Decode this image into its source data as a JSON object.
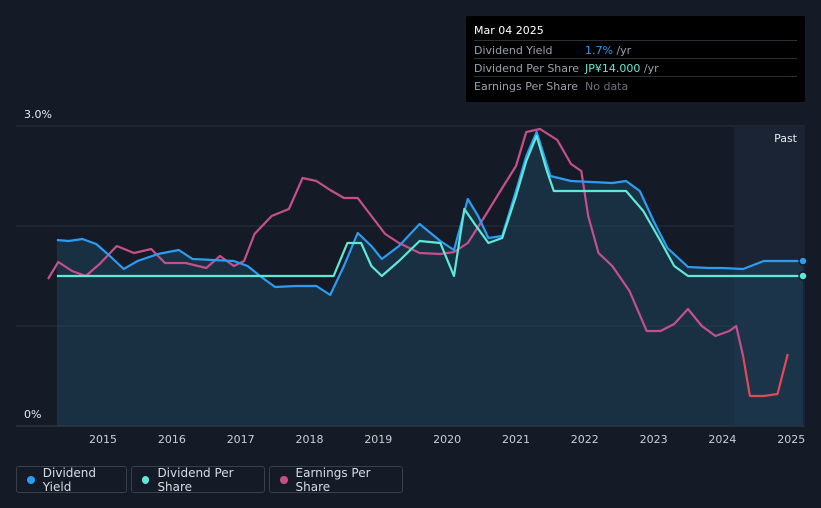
{
  "tooltip": {
    "date": "Mar 04 2025",
    "rows": [
      {
        "label": "Dividend Yield",
        "value": "1.7%",
        "unit": " /yr",
        "color": "#2c9cf0"
      },
      {
        "label": "Dividend Per Share",
        "value": "JP¥14.000",
        "unit": " /yr",
        "color": "#5ee9d6"
      },
      {
        "label": "Earnings Per Share",
        "value": "No data",
        "unit": "",
        "color": "#6b727d"
      }
    ]
  },
  "legend": [
    {
      "label": "Dividend Yield",
      "color": "#2c9cf0"
    },
    {
      "label": "Dividend Per Share",
      "color": "#5ee9d6"
    },
    {
      "label": "Earnings Per Share",
      "color": "#c4508b"
    }
  ],
  "chart_data": {
    "type": "line",
    "y_tick_labels": [
      "3.0%",
      "0%"
    ],
    "ylim": [
      0,
      3.0
    ],
    "xlim": [
      2014.2,
      2025.2
    ],
    "x_tick_labels": [
      "2015",
      "2016",
      "2017",
      "2018",
      "2019",
      "2020",
      "2021",
      "2022",
      "2023",
      "2024",
      "2025"
    ],
    "past_label": "Past",
    "past_start": 2024.17,
    "series": [
      {
        "name": "Dividend Yield",
        "color": "#2c9cf0",
        "points": [
          [
            2014.33,
            1.86
          ],
          [
            2014.5,
            1.85
          ],
          [
            2014.7,
            1.87
          ],
          [
            2014.9,
            1.82
          ],
          [
            2015.1,
            1.7
          ],
          [
            2015.3,
            1.57
          ],
          [
            2015.5,
            1.65
          ],
          [
            2015.8,
            1.72
          ],
          [
            2016.1,
            1.76
          ],
          [
            2016.3,
            1.67
          ],
          [
            2016.6,
            1.66
          ],
          [
            2016.9,
            1.65
          ],
          [
            2017.1,
            1.6
          ],
          [
            2017.3,
            1.49
          ],
          [
            2017.5,
            1.39
          ],
          [
            2017.8,
            1.4
          ],
          [
            2018.1,
            1.4
          ],
          [
            2018.3,
            1.31
          ],
          [
            2018.5,
            1.6
          ],
          [
            2018.7,
            1.93
          ],
          [
            2018.9,
            1.8
          ],
          [
            2019.05,
            1.67
          ],
          [
            2019.3,
            1.8
          ],
          [
            2019.6,
            2.02
          ],
          [
            2019.9,
            1.85
          ],
          [
            2020.1,
            1.76
          ],
          [
            2020.3,
            2.27
          ],
          [
            2020.45,
            2.1
          ],
          [
            2020.6,
            1.88
          ],
          [
            2020.8,
            1.9
          ],
          [
            2021.0,
            2.35
          ],
          [
            2021.15,
            2.7
          ],
          [
            2021.3,
            2.94
          ],
          [
            2021.5,
            2.5
          ],
          [
            2021.8,
            2.45
          ],
          [
            2022.1,
            2.44
          ],
          [
            2022.4,
            2.43
          ],
          [
            2022.6,
            2.45
          ],
          [
            2022.8,
            2.35
          ],
          [
            2023.0,
            2.05
          ],
          [
            2023.2,
            1.78
          ],
          [
            2023.5,
            1.59
          ],
          [
            2023.8,
            1.58
          ],
          [
            2024.0,
            1.58
          ],
          [
            2024.3,
            1.57
          ],
          [
            2024.6,
            1.65
          ],
          [
            2025.0,
            1.65
          ],
          [
            2025.17,
            1.65
          ]
        ]
      },
      {
        "name": "Dividend Per Share",
        "color": "#5ee9d6",
        "points": [
          [
            2014.33,
            1.5
          ],
          [
            2018.35,
            1.5
          ],
          [
            2018.55,
            1.83
          ],
          [
            2018.75,
            1.83
          ],
          [
            2018.9,
            1.6
          ],
          [
            2019.05,
            1.5
          ],
          [
            2019.3,
            1.65
          ],
          [
            2019.6,
            1.85
          ],
          [
            2019.9,
            1.83
          ],
          [
            2020.1,
            1.5
          ],
          [
            2020.25,
            2.17
          ],
          [
            2020.4,
            2.02
          ],
          [
            2020.6,
            1.83
          ],
          [
            2020.8,
            1.88
          ],
          [
            2021.0,
            2.3
          ],
          [
            2021.15,
            2.65
          ],
          [
            2021.3,
            2.9
          ],
          [
            2021.45,
            2.55
          ],
          [
            2021.55,
            2.35
          ],
          [
            2021.8,
            2.35
          ],
          [
            2022.2,
            2.35
          ],
          [
            2022.6,
            2.35
          ],
          [
            2022.85,
            2.15
          ],
          [
            2023.1,
            1.85
          ],
          [
            2023.3,
            1.6
          ],
          [
            2023.5,
            1.5
          ],
          [
            2024.0,
            1.5
          ],
          [
            2025.17,
            1.5
          ]
        ]
      },
      {
        "name": "Earnings Per Share",
        "color": "#c4508b",
        "points": [
          [
            2014.2,
            1.47
          ],
          [
            2014.35,
            1.64
          ],
          [
            2014.55,
            1.55
          ],
          [
            2014.75,
            1.5
          ],
          [
            2014.95,
            1.62
          ],
          [
            2015.2,
            1.8
          ],
          [
            2015.45,
            1.73
          ],
          [
            2015.7,
            1.77
          ],
          [
            2015.9,
            1.63
          ],
          [
            2016.2,
            1.63
          ],
          [
            2016.5,
            1.58
          ],
          [
            2016.7,
            1.7
          ],
          [
            2016.9,
            1.6
          ],
          [
            2017.05,
            1.65
          ],
          [
            2017.2,
            1.92
          ],
          [
            2017.45,
            2.1
          ],
          [
            2017.7,
            2.17
          ],
          [
            2017.9,
            2.48
          ],
          [
            2018.1,
            2.45
          ],
          [
            2018.3,
            2.36
          ],
          [
            2018.5,
            2.28
          ],
          [
            2018.7,
            2.28
          ],
          [
            2018.9,
            2.1
          ],
          [
            2019.1,
            1.92
          ],
          [
            2019.3,
            1.83
          ],
          [
            2019.6,
            1.73
          ],
          [
            2019.9,
            1.72
          ],
          [
            2020.1,
            1.74
          ],
          [
            2020.3,
            1.83
          ],
          [
            2020.55,
            2.1
          ],
          [
            2020.8,
            2.38
          ],
          [
            2021.0,
            2.6
          ],
          [
            2021.15,
            2.94
          ],
          [
            2021.35,
            2.97
          ],
          [
            2021.6,
            2.86
          ],
          [
            2021.8,
            2.62
          ],
          [
            2021.95,
            2.55
          ],
          [
            2022.05,
            2.1
          ],
          [
            2022.2,
            1.73
          ],
          [
            2022.4,
            1.6
          ],
          [
            2022.65,
            1.35
          ],
          [
            2022.9,
            0.95
          ],
          [
            2023.1,
            0.95
          ],
          [
            2023.3,
            1.02
          ],
          [
            2023.5,
            1.17
          ],
          [
            2023.7,
            1.0
          ],
          [
            2023.9,
            0.9
          ],
          [
            2024.1,
            0.95
          ],
          [
            2024.2,
            1.0
          ],
          [
            2024.3,
            0.7
          ],
          [
            2024.4,
            0.3
          ],
          [
            2024.6,
            0.3
          ],
          [
            2024.8,
            0.32
          ],
          [
            2024.95,
            0.72
          ]
        ]
      }
    ]
  }
}
